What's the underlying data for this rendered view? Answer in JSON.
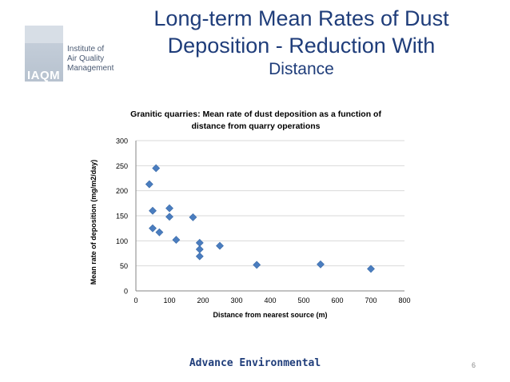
{
  "logo": {
    "acronym": "IAQM",
    "name_lines": [
      "Institute of",
      "Air Quality",
      "Management"
    ]
  },
  "slide": {
    "title_line1": "Long-term Mean Rates of Dust",
    "title_line2": "Deposition - Reduction With",
    "title_line3": "Distance",
    "footer": "Advance Environmental",
    "page_number": "6"
  },
  "colors": {
    "title": "#1f3d7a",
    "marker": "#4a7dbf",
    "marker_stroke": "#3a6aa8",
    "grid": "#d9d9d9"
  },
  "chart_data": {
    "type": "scatter",
    "title": "Granitic quarries: Mean rate of dust deposition as a function of distance from quarry operations",
    "title_lines": [
      "Granitic quarries: Mean rate of dust deposition as a function of",
      "distance from quarry operations"
    ],
    "xlabel": "Distance from nearest source (m)",
    "ylabel": "Mean rate of deposition (mg/m2/day)",
    "xlim": [
      0,
      800
    ],
    "ylim": [
      0,
      300
    ],
    "xticks": [
      0,
      100,
      200,
      300,
      400,
      500,
      600,
      700,
      800
    ],
    "yticks": [
      0,
      50,
      100,
      150,
      200,
      250,
      300
    ],
    "grid": "horizontal",
    "marker": "diamond",
    "points": [
      {
        "x": 60,
        "y": 245
      },
      {
        "x": 40,
        "y": 213
      },
      {
        "x": 50,
        "y": 160
      },
      {
        "x": 100,
        "y": 165
      },
      {
        "x": 100,
        "y": 148
      },
      {
        "x": 170,
        "y": 147
      },
      {
        "x": 50,
        "y": 125
      },
      {
        "x": 70,
        "y": 117
      },
      {
        "x": 120,
        "y": 102
      },
      {
        "x": 190,
        "y": 96
      },
      {
        "x": 190,
        "y": 83
      },
      {
        "x": 190,
        "y": 69
      },
      {
        "x": 250,
        "y": 90
      },
      {
        "x": 360,
        "y": 52
      },
      {
        "x": 550,
        "y": 53
      },
      {
        "x": 700,
        "y": 44
      }
    ]
  }
}
